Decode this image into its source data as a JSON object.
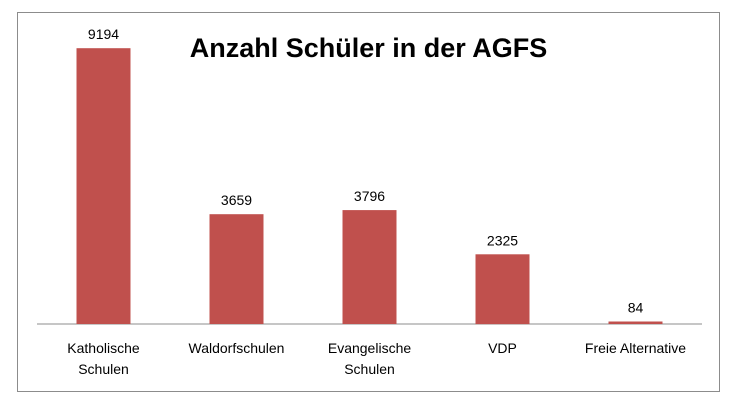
{
  "chart_data": {
    "type": "bar",
    "title": "Anzahl Schüler in der AGFS",
    "categories": [
      [
        "Katholische",
        "Schulen"
      ],
      [
        "Waldorfschulen"
      ],
      [
        "Evangelische",
        "Schulen"
      ],
      [
        "VDP"
      ],
      [
        "Freie Alternative"
      ]
    ],
    "values": [
      9194,
      3659,
      3796,
      2325,
      84
    ],
    "data_labels": [
      "9194",
      "3659",
      "3796",
      "2325",
      "84"
    ],
    "ylim": [
      0,
      10000
    ],
    "grid": false,
    "legend": "none",
    "bar_color": "#c0504d"
  }
}
